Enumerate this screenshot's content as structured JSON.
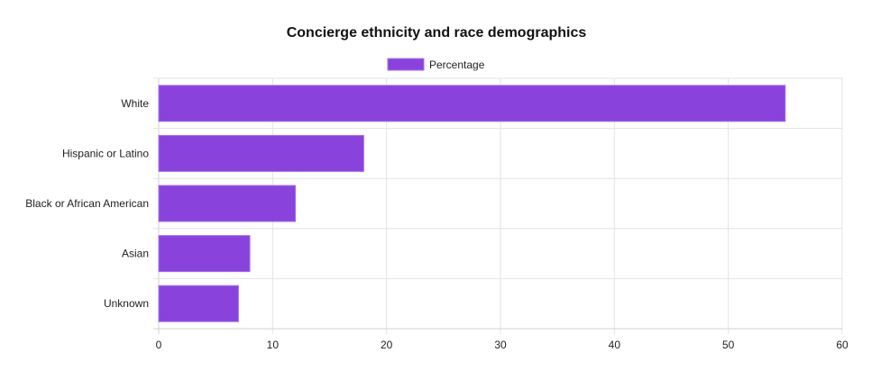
{
  "chart_data": {
    "type": "bar",
    "orientation": "horizontal",
    "title": "Concierge ethnicity and race demographics",
    "categories": [
      "White",
      "Hispanic or Latino",
      "Black or African American",
      "Asian",
      "Unknown"
    ],
    "series": [
      {
        "name": "Percentage",
        "values": [
          55,
          18,
          12,
          8,
          7
        ]
      }
    ],
    "xlim": [
      0,
      60
    ],
    "xticks": [
      "0",
      "10",
      "20",
      "30",
      "40",
      "50",
      "60"
    ],
    "grid": true,
    "legend": "top-center",
    "colors": {
      "bar_fill": "#8a42dc",
      "bar_border": "#a374e6"
    }
  }
}
